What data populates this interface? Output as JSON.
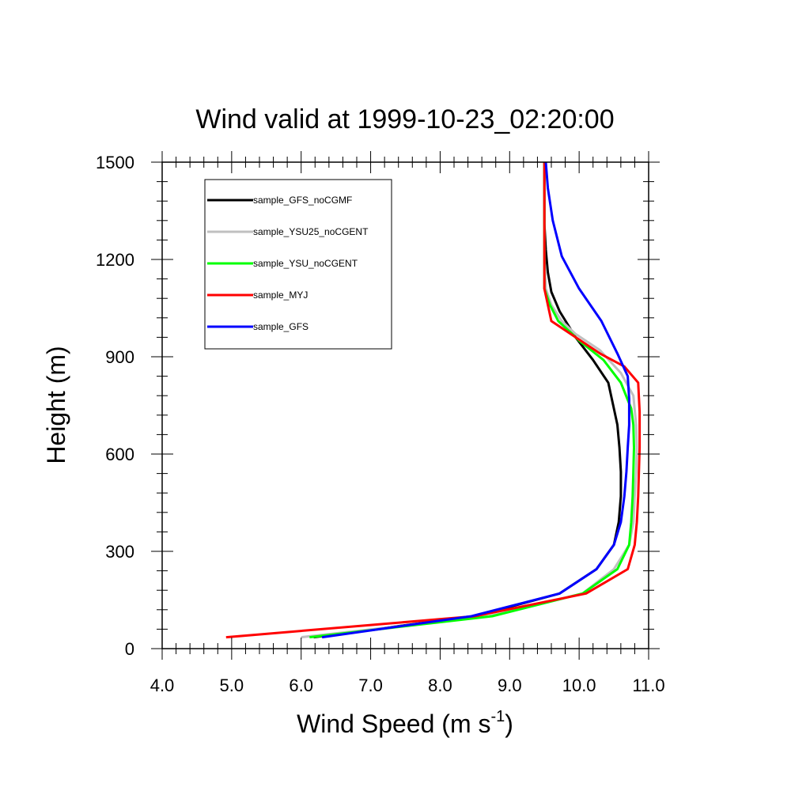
{
  "chart_data": {
    "type": "line",
    "title": "Wind valid at 1999-10-23_02:20:00",
    "xlabel": "Wind Speed (m s",
    "xlabel_sup": "-1",
    "xlabel_close": ")",
    "ylabel": "Height (m)",
    "xlim": [
      4.0,
      11.0
    ],
    "ylim": [
      0,
      1500
    ],
    "xticks": [
      "4.0",
      "5.0",
      "6.0",
      "7.0",
      "8.0",
      "9.0",
      "10.0",
      "11.0"
    ],
    "yticks": [
      "0",
      "300",
      "600",
      "900",
      "1200",
      "1500"
    ],
    "grid": false,
    "legend_position": "top-left",
    "series": [
      {
        "name": "sample_GFS_noCGMF",
        "color": "#000000",
        "points": [
          [
            6.18,
            35
          ],
          [
            8.5,
            100
          ],
          [
            9.72,
            170
          ],
          [
            10.25,
            245
          ],
          [
            10.5,
            320
          ],
          [
            10.57,
            390
          ],
          [
            10.6,
            470
          ],
          [
            10.6,
            545
          ],
          [
            10.58,
            620
          ],
          [
            10.55,
            690
          ],
          [
            10.5,
            740
          ],
          [
            10.42,
            820
          ],
          [
            10.2,
            890
          ],
          [
            9.95,
            960
          ],
          [
            9.72,
            1040
          ],
          [
            9.6,
            1100
          ],
          [
            9.55,
            1160
          ],
          [
            9.52,
            1230
          ],
          [
            9.5,
            1310
          ],
          [
            9.5,
            1420
          ],
          [
            9.5,
            1500
          ]
        ]
      },
      {
        "name": "sample_YSU25_noCGENT",
        "color": "#c0c0c0",
        "points": [
          [
            6.0,
            35
          ],
          [
            8.7,
            100
          ],
          [
            10.05,
            170
          ],
          [
            10.5,
            245
          ],
          [
            10.72,
            320
          ],
          [
            10.78,
            390
          ],
          [
            10.8,
            470
          ],
          [
            10.82,
            545
          ],
          [
            10.83,
            620
          ],
          [
            10.82,
            690
          ],
          [
            10.78,
            780
          ],
          [
            10.6,
            850
          ],
          [
            10.3,
            920
          ],
          [
            9.95,
            970
          ],
          [
            9.75,
            1010
          ],
          [
            9.6,
            1060
          ],
          [
            9.52,
            1110
          ],
          [
            9.5,
            1200
          ],
          [
            9.5,
            1300
          ],
          [
            9.5,
            1420
          ],
          [
            9.5,
            1500
          ]
        ]
      },
      {
        "name": "sample_YSU_noCGENT",
        "color": "#00ff00",
        "points": [
          [
            6.12,
            35
          ],
          [
            8.75,
            100
          ],
          [
            10.05,
            170
          ],
          [
            10.55,
            245
          ],
          [
            10.72,
            320
          ],
          [
            10.75,
            390
          ],
          [
            10.77,
            470
          ],
          [
            10.78,
            545
          ],
          [
            10.79,
            620
          ],
          [
            10.78,
            690
          ],
          [
            10.75,
            740
          ],
          [
            10.6,
            820
          ],
          [
            10.35,
            890
          ],
          [
            10.0,
            950
          ],
          [
            9.7,
            1010
          ],
          [
            9.58,
            1060
          ],
          [
            9.5,
            1110
          ],
          [
            9.5,
            1200
          ],
          [
            9.5,
            1300
          ],
          [
            9.5,
            1420
          ],
          [
            9.5,
            1500
          ]
        ]
      },
      {
        "name": "sample_MYJ",
        "color": "#ff0000",
        "points": [
          [
            4.92,
            35
          ],
          [
            8.5,
            100
          ],
          [
            10.1,
            170
          ],
          [
            10.7,
            245
          ],
          [
            10.8,
            320
          ],
          [
            10.83,
            390
          ],
          [
            10.85,
            470
          ],
          [
            10.86,
            545
          ],
          [
            10.87,
            620
          ],
          [
            10.87,
            730
          ],
          [
            10.85,
            820
          ],
          [
            10.65,
            870
          ],
          [
            10.3,
            910
          ],
          [
            9.95,
            960
          ],
          [
            9.6,
            1010
          ],
          [
            9.55,
            1060
          ],
          [
            9.5,
            1110
          ],
          [
            9.5,
            1200
          ],
          [
            9.5,
            1300
          ],
          [
            9.5,
            1420
          ],
          [
            9.5,
            1500
          ]
        ]
      },
      {
        "name": "sample_GFS",
        "color": "#0000ff",
        "points": [
          [
            6.3,
            35
          ],
          [
            8.45,
            100
          ],
          [
            9.72,
            170
          ],
          [
            10.25,
            245
          ],
          [
            10.5,
            320
          ],
          [
            10.6,
            390
          ],
          [
            10.65,
            470
          ],
          [
            10.68,
            545
          ],
          [
            10.7,
            620
          ],
          [
            10.72,
            690
          ],
          [
            10.72,
            770
          ],
          [
            10.7,
            840
          ],
          [
            10.55,
            910
          ],
          [
            10.32,
            1010
          ],
          [
            10.0,
            1110
          ],
          [
            9.75,
            1210
          ],
          [
            9.62,
            1320
          ],
          [
            9.55,
            1420
          ],
          [
            9.52,
            1500
          ]
        ]
      }
    ]
  }
}
